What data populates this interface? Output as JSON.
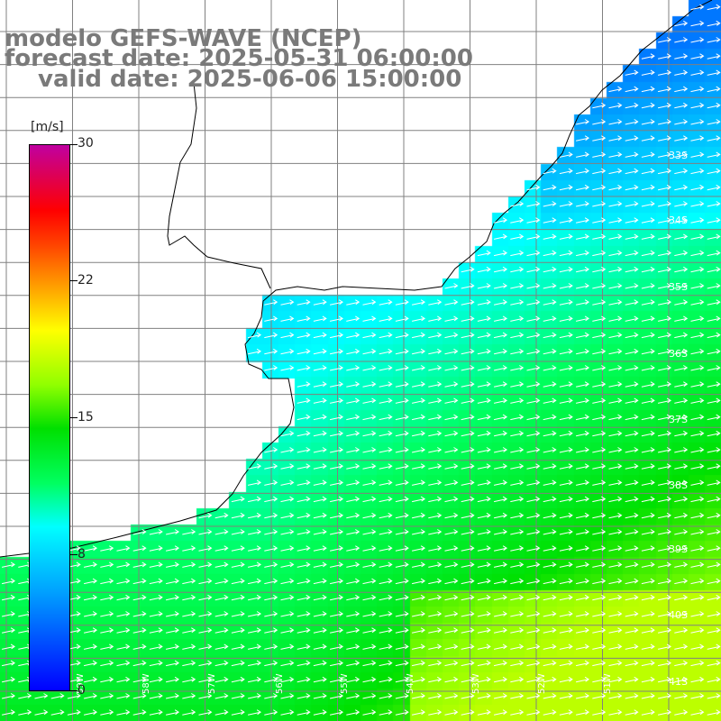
{
  "title": {
    "line1": "modelo GEFS-WAVE (NCEP)",
    "line2": "forecast date: 2025-05-31 06:00:00",
    "line3": "valid date: 2025-06-06 15:00:00"
  },
  "colorbar": {
    "units": "[m/s]",
    "ticks": [
      "30",
      "22",
      "15",
      "8",
      "0"
    ],
    "colors": [
      "#0000ff",
      "#00a0ff",
      "#00ffff",
      "#00ff60",
      "#00e000",
      "#90ff00",
      "#ffff00",
      "#ffa000",
      "#ff4000",
      "#ff0000",
      "#c000a0"
    ]
  },
  "lat_labels": [
    "33S",
    "34S",
    "35S",
    "36S",
    "37S",
    "38S",
    "39S",
    "40S",
    "41S"
  ],
  "lon_labels": [
    "59W",
    "58W",
    "57W",
    "56W",
    "55W",
    "54W",
    "53W",
    "52W",
    "51W"
  ],
  "colors": {
    "land": "#ffffff",
    "grid": "#808080",
    "coast": "#000000",
    "title": "#7a7a7a",
    "arrows": "#ffffff"
  }
}
